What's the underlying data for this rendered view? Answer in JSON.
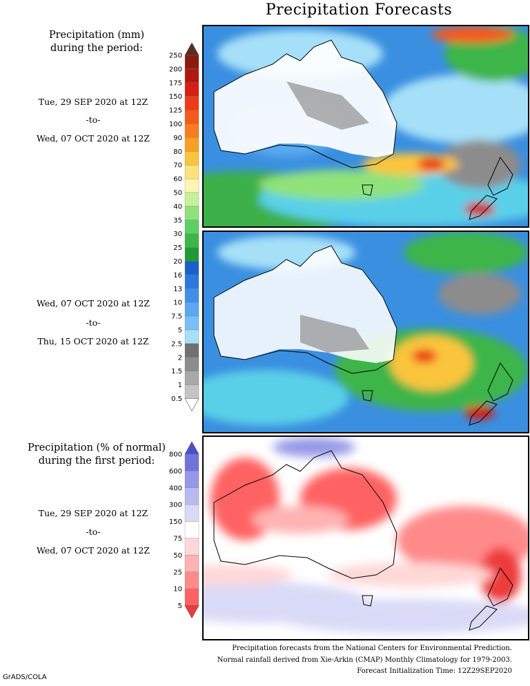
{
  "title": "Precipitation Forecasts",
  "top_section": {
    "heading_line1": "Precipitation (mm)",
    "heading_line2": "during the period:",
    "period1": {
      "start": "Tue, 29 SEP 2020 at 12Z",
      "sep": "-to-",
      "end": "Wed, 07 OCT 2020 at 12Z"
    },
    "period2": {
      "start": "Wed, 07 OCT 2020 at 12Z",
      "sep": "-to-",
      "end": "Thu, 15 OCT 2020 at 12Z"
    },
    "colorbar_labels": [
      "250",
      "200",
      "175",
      "150",
      "125",
      "100",
      "90",
      "80",
      "70",
      "60",
      "50",
      "40",
      "35",
      "30",
      "25",
      "20",
      "16",
      "13",
      "10",
      "7.5",
      "5",
      "2.5",
      "2",
      "1.5",
      "1",
      "0.5"
    ],
    "colorbar_colors": [
      "#5a2d1e",
      "#8b1a10",
      "#b01810",
      "#d41f12",
      "#ee3b18",
      "#f55a1a",
      "#f87d1c",
      "#f9a024",
      "#fbc43c",
      "#fde27a",
      "#fff5b0",
      "#c6f29a",
      "#8fe27a",
      "#5cd064",
      "#3eb54a",
      "#1f9a36",
      "#1c5fc8",
      "#2a78dd",
      "#3f90e8",
      "#5aa8f0",
      "#78c0f5",
      "#a6e0f8",
      "#707070",
      "#8c8c8c",
      "#a8a8a8",
      "#c4c4c4",
      "#ffffff"
    ]
  },
  "bottom_section": {
    "heading_line1": "Precipitation (% of normal)",
    "heading_line2": "during the first period:",
    "period": {
      "start": "Tue, 29 SEP 2020 at 12Z",
      "sep": "-to-",
      "end": "Wed, 07 OCT 2020 at 12Z"
    },
    "colorbar_labels": [
      "800",
      "600",
      "400",
      "300",
      "150",
      "75",
      "50",
      "25",
      "10",
      "5"
    ],
    "colorbar_colors": [
      "#4a4fcf",
      "#6f74dc",
      "#9598e6",
      "#b8baef",
      "#d9daf7",
      "#ffffff",
      "#ffd8d8",
      "#ffb3b3",
      "#ff8a8a",
      "#ff6262",
      "#ee3a3a"
    ]
  },
  "footer": {
    "line1": "Precipitation forecasts from the National Centers for Environmental Prediction.",
    "line2": "Normal rainfall derived from Xie-Arkin (CMAP) Monthly Climatology for 1979-2003.",
    "line3": "Forecast Initialization Time: 12Z29SEP2020"
  },
  "credit": "GrADS/COLA"
}
